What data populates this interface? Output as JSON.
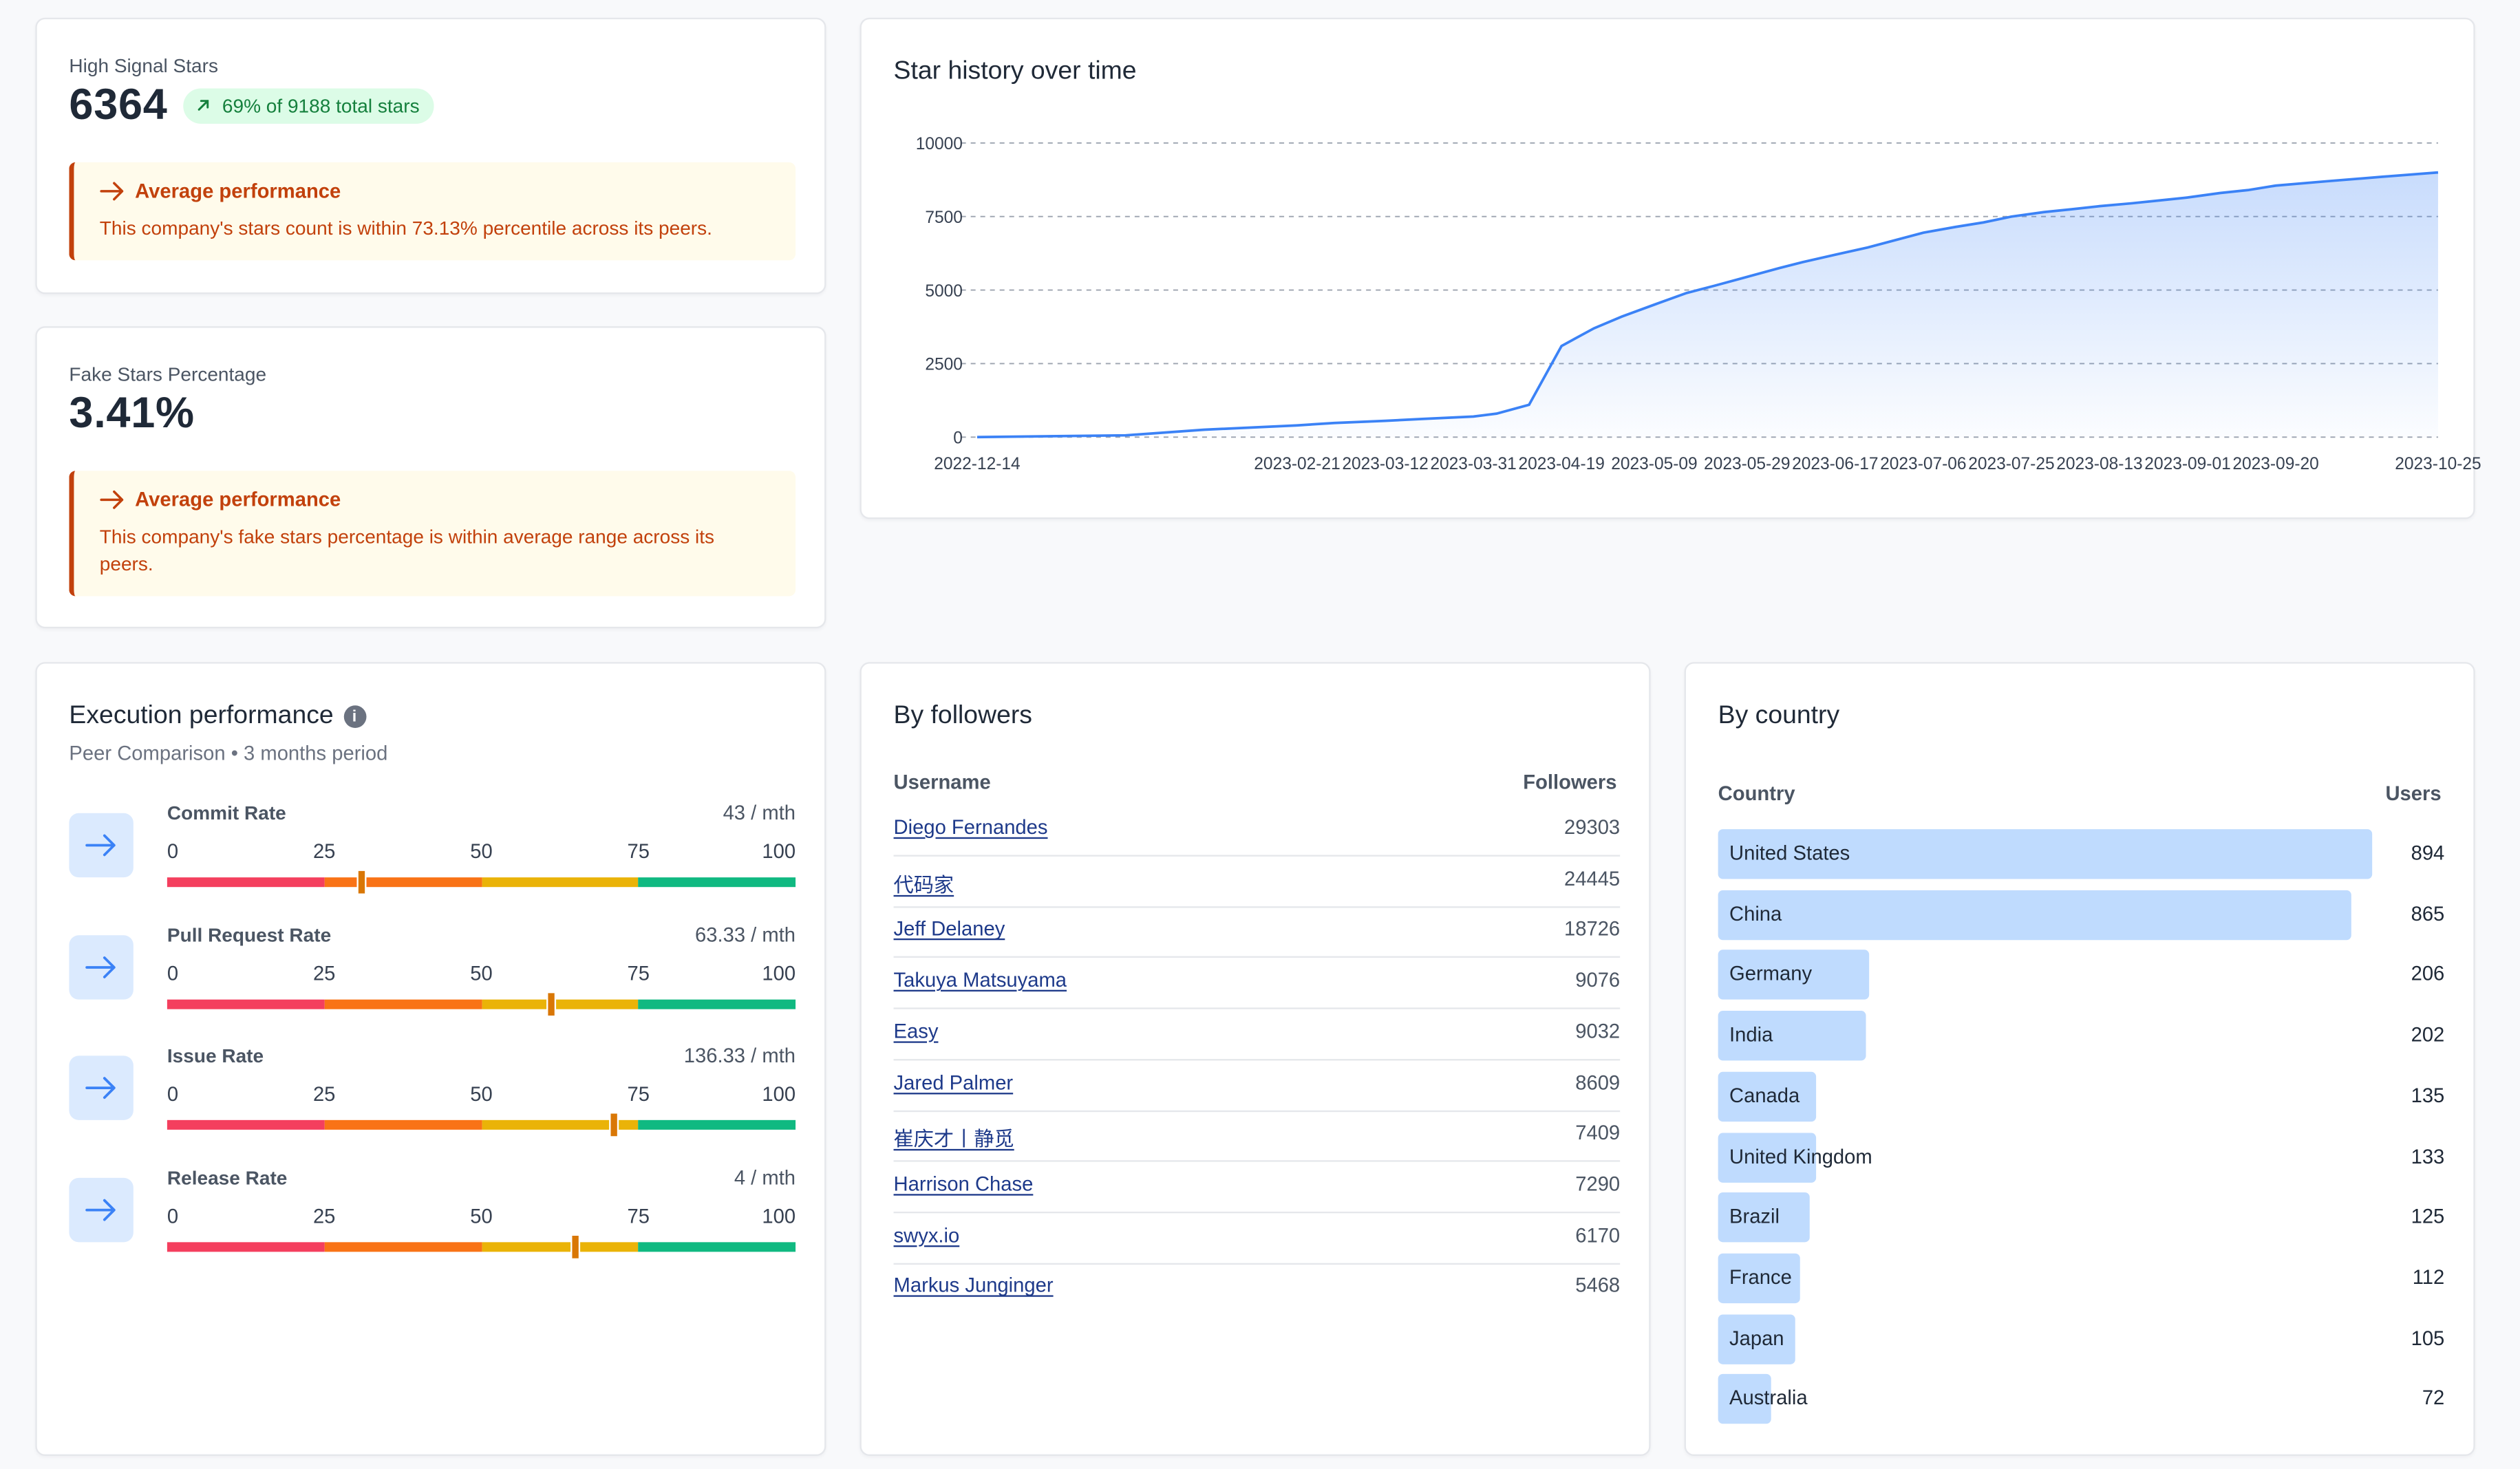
{
  "high_signal": {
    "label": "High Signal Stars",
    "value": "6364",
    "badge": "69% of 9188 total stars",
    "alert_title": "Average performance",
    "alert_text": "This company's stars count is within 73.13% percentile across its peers."
  },
  "fake_stars": {
    "label": "Fake Stars Percentage",
    "value": "3.41%",
    "alert_title": "Average performance",
    "alert_text": "This company's fake stars percentage is within average range across its peers."
  },
  "star_history": {
    "title": "Star history over time",
    "chart_data": {
      "type": "area",
      "title": "Star history over time",
      "xlabel": "",
      "ylabel": "",
      "ylim": [
        0,
        10000
      ],
      "y_ticks": [
        0,
        2500,
        5000,
        7500,
        10000
      ],
      "x_tick_labels": [
        "2022-12-14",
        "2023-02-21",
        "2023-03-12",
        "2023-03-31",
        "2023-04-19",
        "2023-05-09",
        "2023-05-29",
        "2023-06-17",
        "2023-07-06",
        "2023-07-25",
        "2023-08-13",
        "2023-09-01",
        "2023-09-20",
        "2023-10-25"
      ],
      "grid": true,
      "series": [
        {
          "color": "#3b82f6",
          "x": [
            "2022-12-14",
            "2023-01-15",
            "2023-02-01",
            "2023-02-21",
            "2023-03-01",
            "2023-03-12",
            "2023-03-20",
            "2023-03-31",
            "2023-04-05",
            "2023-04-12",
            "2023-04-19",
            "2023-04-26",
            "2023-05-02",
            "2023-05-09",
            "2023-05-16",
            "2023-05-22",
            "2023-05-29",
            "2023-06-05",
            "2023-06-10",
            "2023-06-17",
            "2023-06-24",
            "2023-06-30",
            "2023-07-06",
            "2023-07-13",
            "2023-07-19",
            "2023-07-25",
            "2023-08-01",
            "2023-08-07",
            "2023-08-13",
            "2023-08-20",
            "2023-08-26",
            "2023-09-01",
            "2023-09-08",
            "2023-09-14",
            "2023-09-20",
            "2023-10-01",
            "2023-10-13",
            "2023-10-25"
          ],
          "y": [
            0,
            60,
            250,
            400,
            480,
            550,
            620,
            700,
            800,
            1100,
            3100,
            3700,
            4100,
            4500,
            4900,
            5150,
            5450,
            5750,
            5950,
            6200,
            6450,
            6700,
            6950,
            7150,
            7300,
            7500,
            7650,
            7750,
            7850,
            7950,
            8050,
            8150,
            8300,
            8400,
            8550,
            8700,
            8850,
            9000
          ]
        }
      ]
    }
  },
  "execution": {
    "title": "Execution performance",
    "info_icon": "info-icon",
    "subtitle": "Peer Comparison • 3 months period",
    "scale_labels": [
      "0",
      "25",
      "50",
      "75",
      "100"
    ],
    "segment_colors": [
      "#f43f5e",
      "#f97316",
      "#eab308",
      "#10b981"
    ],
    "metrics": [
      {
        "name": "Commit Rate",
        "value": "43 / mth",
        "percentile": 31
      },
      {
        "name": "Pull Request Rate",
        "value": "63.33 / mth",
        "percentile": 61
      },
      {
        "name": "Issue Rate",
        "value": "136.33 / mth",
        "percentile": 71
      },
      {
        "name": "Release Rate",
        "value": "4 / mth",
        "percentile": 65
      }
    ]
  },
  "followers": {
    "title": "By followers",
    "col_user": "Username",
    "col_followers": "Followers",
    "rows": [
      {
        "user": "Diego Fernandes",
        "followers": "29303"
      },
      {
        "user": "代码家",
        "followers": "24445"
      },
      {
        "user": "Jeff Delaney",
        "followers": "18726"
      },
      {
        "user": "Takuya Matsuyama",
        "followers": "9076"
      },
      {
        "user": "Easy",
        "followers": "9032"
      },
      {
        "user": "Jared Palmer",
        "followers": "8609"
      },
      {
        "user": "崔庆才丨静觅",
        "followers": "7409"
      },
      {
        "user": "Harrison Chase",
        "followers": "7290"
      },
      {
        "user": "swyx.io",
        "followers": "6170"
      },
      {
        "user": "Markus Junginger",
        "followers": "5468"
      }
    ]
  },
  "country": {
    "title": "By country",
    "col_country": "Country",
    "col_users": "Users",
    "bar_color": "#bfdbfe",
    "rows": [
      {
        "name": "United States",
        "users": 894
      },
      {
        "name": "China",
        "users": 865
      },
      {
        "name": "Germany",
        "users": 206
      },
      {
        "name": "India",
        "users": 202
      },
      {
        "name": "Canada",
        "users": 135
      },
      {
        "name": "United Kingdom",
        "users": 133
      },
      {
        "name": "Brazil",
        "users": 125
      },
      {
        "name": "France",
        "users": 112
      },
      {
        "name": "Japan",
        "users": 105
      },
      {
        "name": "Australia",
        "users": 72
      }
    ]
  }
}
